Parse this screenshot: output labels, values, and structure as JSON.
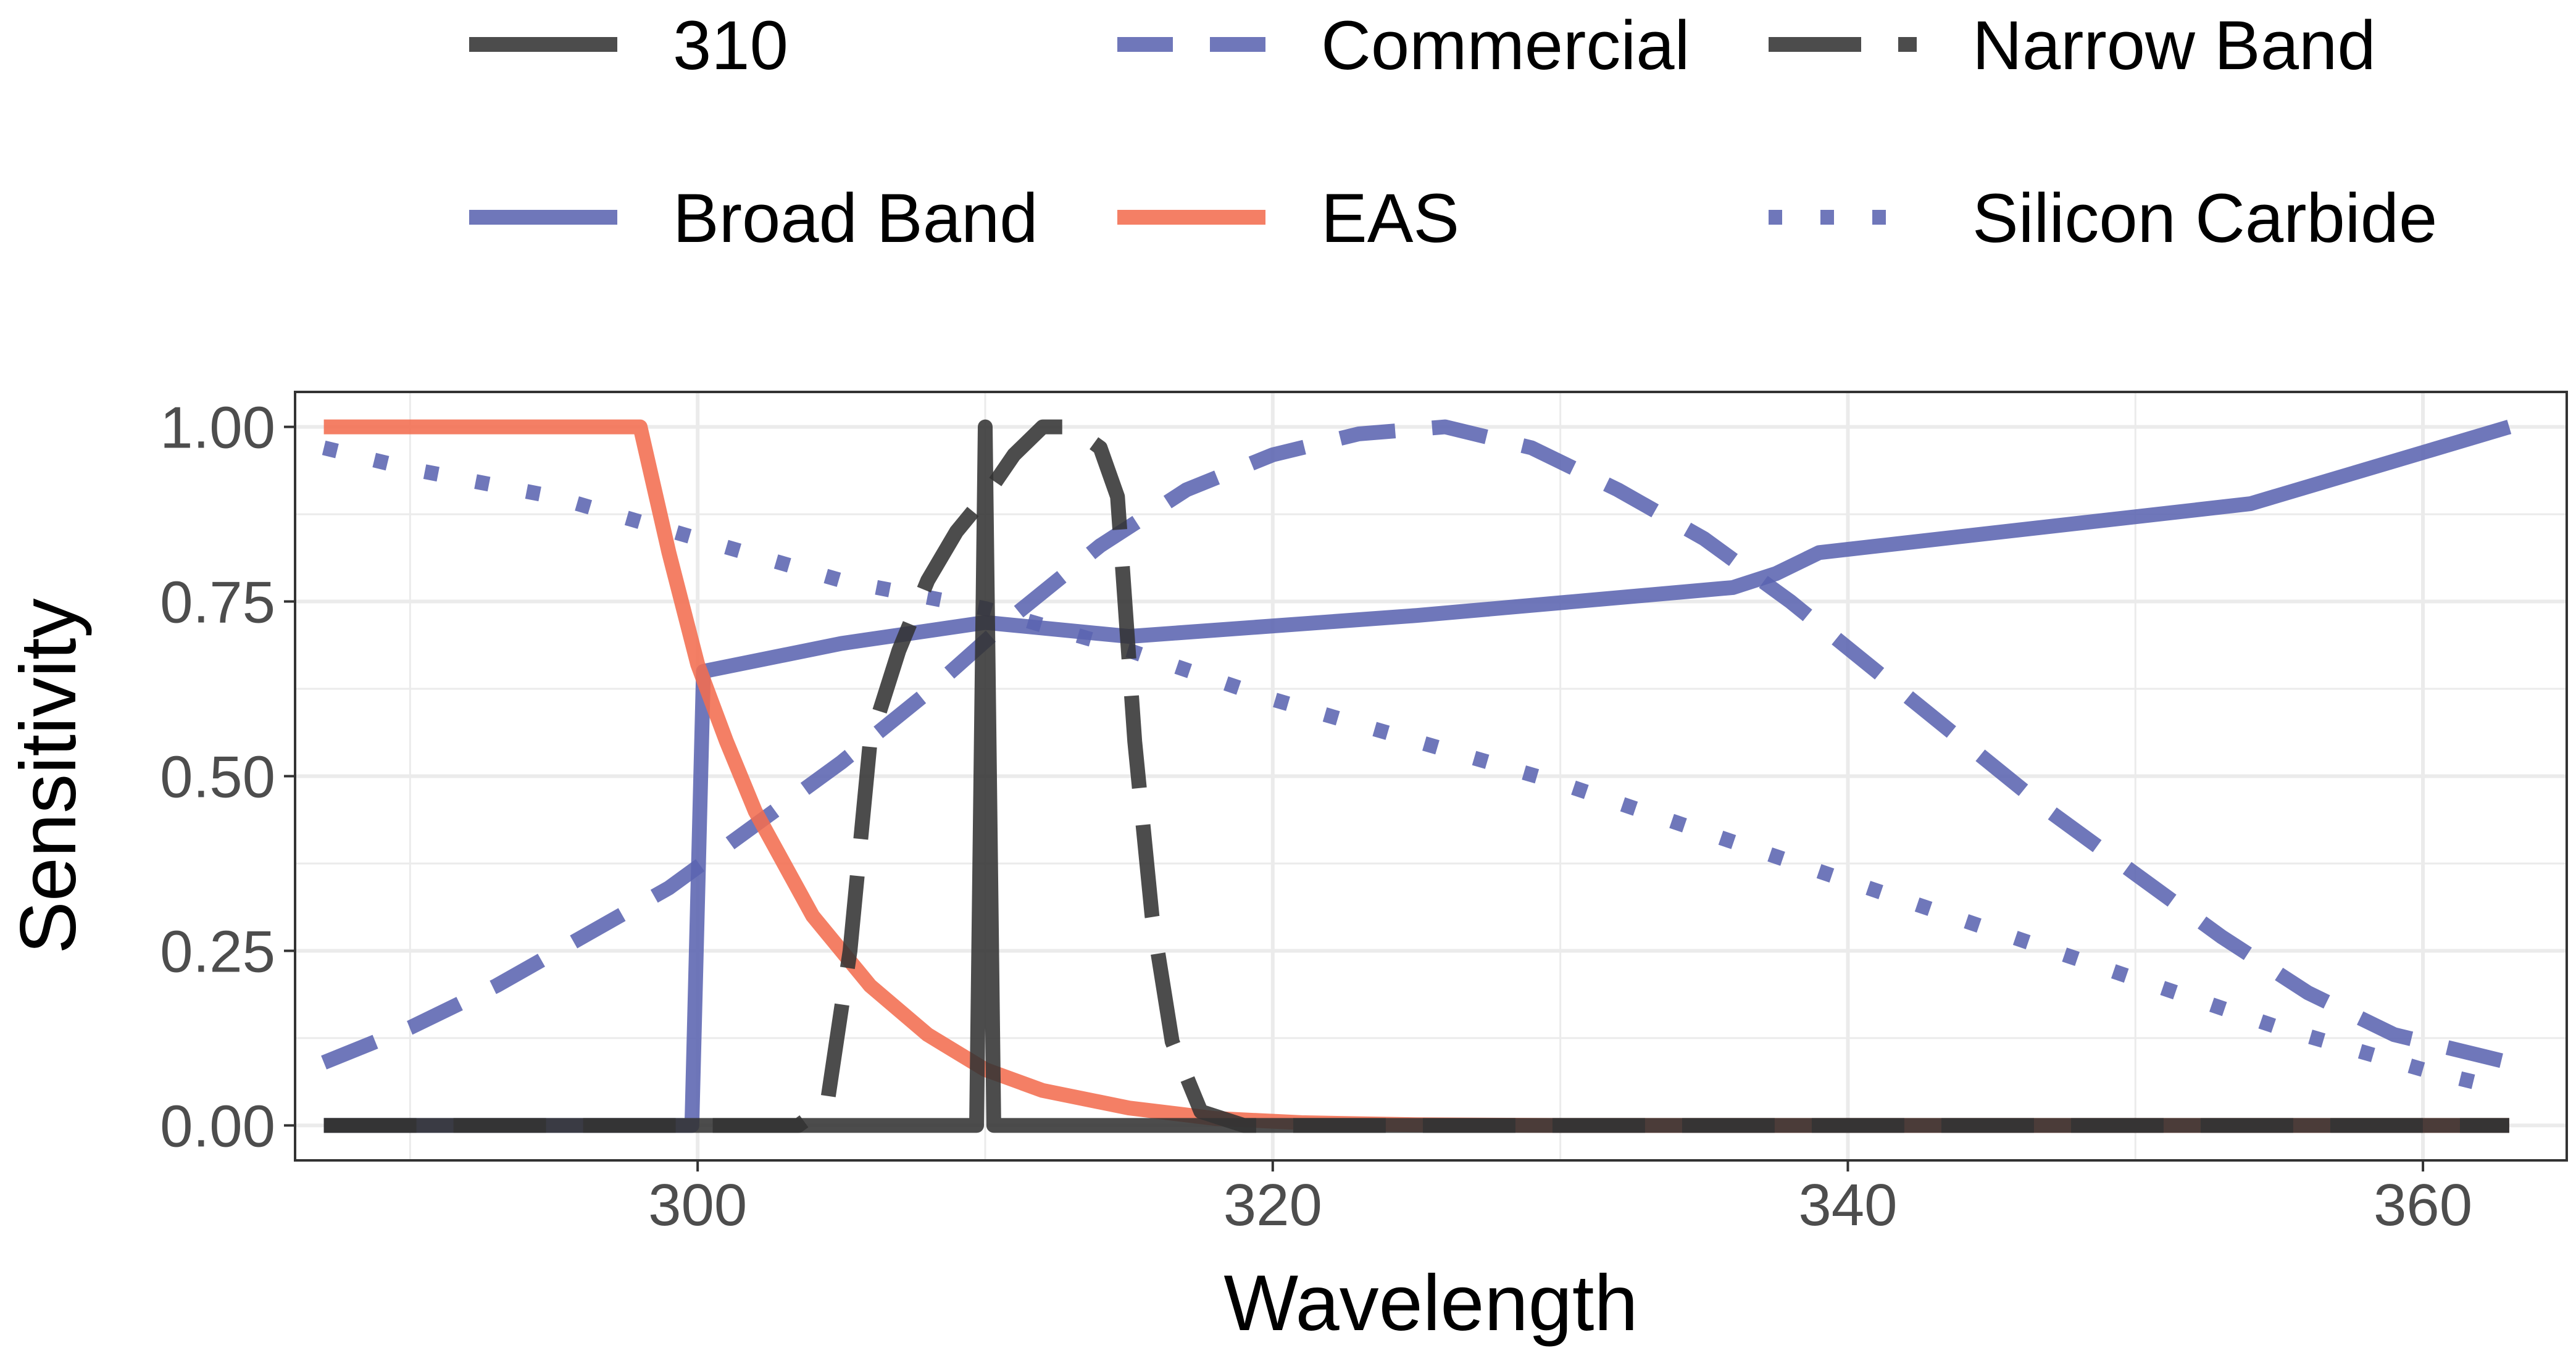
{
  "chart_data": {
    "type": "line",
    "title": "",
    "xlabel": "Wavelength",
    "ylabel": "Sensitivity",
    "xlim": [
      286,
      365
    ],
    "ylim": [
      -0.05,
      1.05
    ],
    "x_ticks": [
      300,
      320,
      340,
      360
    ],
    "x_tick_labels": [
      "300",
      "320",
      "340",
      "360"
    ],
    "y_ticks": [
      0,
      0.25,
      0.5,
      0.75,
      1.0
    ],
    "y_tick_labels": [
      "0.00",
      "0.25",
      "0.50",
      "0.75",
      "1.00"
    ],
    "grid": true,
    "legend_position": "top",
    "series": [
      {
        "name": "310",
        "color": "#333333",
        "dash": "solid",
        "x": [
          287,
          309.7,
          310,
          310.3,
          363
        ],
        "y": [
          0,
          0,
          1,
          0,
          0
        ]
      },
      {
        "name": "Commercial",
        "color": "#5b64b0",
        "dash": "dashed",
        "x": [
          287,
          290,
          293,
          296,
          299,
          302,
          305,
          308,
          311,
          314,
          317,
          320,
          323,
          326,
          329,
          332,
          335,
          338,
          341,
          344,
          347,
          350,
          353,
          356,
          359,
          362,
          363
        ],
        "y": [
          0.09,
          0.14,
          0.2,
          0.27,
          0.34,
          0.43,
          0.52,
          0.62,
          0.73,
          0.83,
          0.91,
          0.96,
          0.99,
          1.0,
          0.97,
          0.91,
          0.84,
          0.75,
          0.65,
          0.55,
          0.45,
          0.36,
          0.27,
          0.19,
          0.13,
          0.1,
          0.09
        ]
      },
      {
        "name": "Narrow Band",
        "color": "#333333",
        "dash": "longdash",
        "x": [
          287,
          303.5,
          304.5,
          305.3,
          306,
          307,
          308,
          309,
          310,
          311,
          312,
          313,
          314,
          314.6,
          315.2,
          315.8,
          316.5,
          317.5,
          319,
          363
        ],
        "y": [
          0,
          0,
          0.03,
          0.25,
          0.55,
          0.68,
          0.78,
          0.85,
          0.9,
          0.96,
          1.0,
          1.0,
          0.97,
          0.9,
          0.55,
          0.3,
          0.12,
          0.02,
          0,
          0
        ]
      },
      {
        "name": "Broad Band",
        "color": "#5b64b0",
        "dash": "solid",
        "x": [
          287,
          299.8,
          300.2,
          305,
          310,
          315,
          325,
          336,
          337.5,
          339,
          354,
          363
        ],
        "y": [
          0,
          0,
          0.65,
          0.69,
          0.72,
          0.7,
          0.73,
          0.77,
          0.79,
          0.82,
          0.89,
          1.0
        ]
      },
      {
        "name": "EAS",
        "color": "#f26d50",
        "dash": "solid",
        "x": [
          287,
          298,
          299,
          300,
          301,
          302,
          304,
          306,
          308,
          310,
          312,
          315,
          318,
          321,
          325,
          330,
          340,
          363
        ],
        "y": [
          1.0,
          1.0,
          0.82,
          0.66,
          0.55,
          0.45,
          0.3,
          0.2,
          0.13,
          0.08,
          0.05,
          0.025,
          0.01,
          0.004,
          0.001,
          0,
          0,
          0
        ]
      },
      {
        "name": "Silicon Carbide",
        "color": "#5b64b0",
        "dash": "dotted",
        "x": [
          287,
          290,
          295,
          300,
          305,
          310,
          315,
          320,
          325,
          330,
          335,
          340,
          345,
          350,
          355,
          360,
          362
        ],
        "y": [
          0.97,
          0.94,
          0.9,
          0.84,
          0.78,
          0.74,
          0.68,
          0.61,
          0.55,
          0.49,
          0.42,
          0.35,
          0.28,
          0.21,
          0.14,
          0.08,
          0.06
        ]
      }
    ],
    "legend_rows": [
      [
        "310",
        "Commercial",
        "Narrow Band"
      ],
      [
        "Broad Band",
        "EAS",
        "Silicon Carbide"
      ]
    ]
  }
}
